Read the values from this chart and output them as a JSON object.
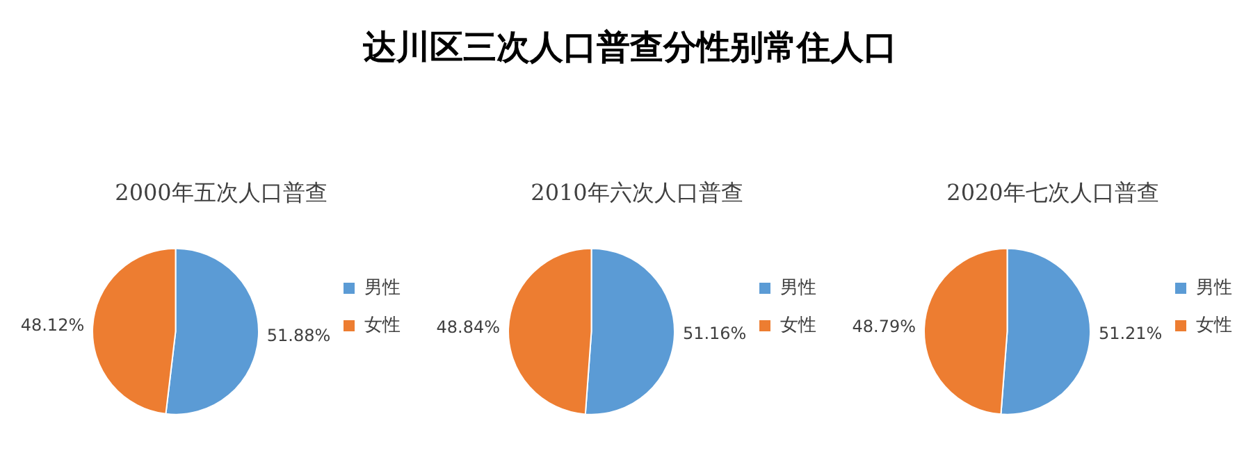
{
  "chart_data": [
    {
      "type": "other",
      "title": "达川区三次人口普查分性别常住人口"
    },
    {
      "type": "pie",
      "title": "2000年五次人口普查",
      "categories": [
        "男性",
        "女性"
      ],
      "values": [
        51.88,
        48.12
      ],
      "colors": [
        "#5b9bd5",
        "#ed7d31"
      ],
      "value_labels": [
        "51.88%",
        "48.12%"
      ],
      "legend": "right"
    },
    {
      "type": "pie",
      "title": "2010年六次人口普查",
      "categories": [
        "男性",
        "女性"
      ],
      "values": [
        51.16,
        48.84
      ],
      "colors": [
        "#5b9bd5",
        "#ed7d31"
      ],
      "value_labels": [
        "51.16%",
        "48.84%"
      ],
      "legend": "right"
    },
    {
      "type": "pie",
      "title": "2020年七次人口普查",
      "categories": [
        "男性",
        "女性"
      ],
      "values": [
        51.21,
        48.79
      ],
      "colors": [
        "#5b9bd5",
        "#ed7d31"
      ],
      "value_labels": [
        "51.21%",
        "48.79%"
      ],
      "legend": "right"
    }
  ]
}
